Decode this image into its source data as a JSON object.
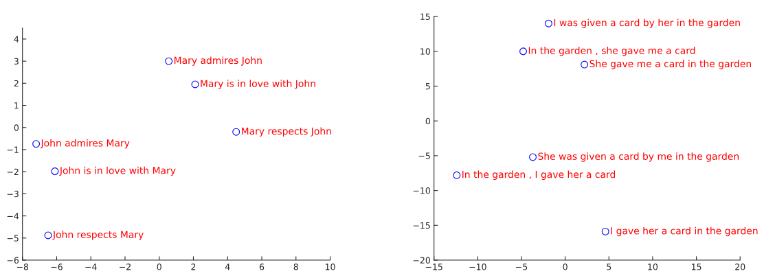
{
  "chart_data": [
    {
      "type": "scatter",
      "xlim": [
        -8,
        10
      ],
      "ylim": [
        -6,
        4.5
      ],
      "xticks": [
        -8,
        -6,
        -4,
        -2,
        0,
        2,
        4,
        6,
        8,
        10
      ],
      "yticks": [
        -6,
        -5,
        -4,
        -3,
        -2,
        -1,
        0,
        1,
        2,
        3,
        4
      ],
      "grid": false,
      "marker": "circle",
      "series": [
        {
          "color": "#0000ff",
          "x": [
            0.56,
            2.1,
            4.5,
            -7.2,
            -6.1,
            -6.5
          ],
          "values": [
            3.0,
            1.95,
            -0.2,
            -0.74,
            -1.98,
            -4.88
          ]
        }
      ],
      "annotations": [
        {
          "text": "Mary admires John",
          "x": 0.56,
          "y": 3.0
        },
        {
          "text": "Mary is in love with John",
          "x": 2.1,
          "y": 1.95
        },
        {
          "text": "Mary respects John",
          "x": 4.5,
          "y": -0.2
        },
        {
          "text": "John admires Mary",
          "x": -7.2,
          "y": -0.74
        },
        {
          "text": "John is in love with Mary",
          "x": -6.1,
          "y": -1.98
        },
        {
          "text": "John respects Mary",
          "x": -6.5,
          "y": -4.88
        }
      ]
    },
    {
      "type": "scatter",
      "xlim": [
        -15,
        20
      ],
      "ylim": [
        -20,
        15
      ],
      "xticks": [
        -15,
        -10,
        -5,
        0,
        5,
        10,
        15,
        20
      ],
      "yticks": [
        -20,
        -15,
        -10,
        -5,
        0,
        5,
        10,
        15
      ],
      "grid": false,
      "marker": "circle",
      "series": [
        {
          "color": "#0000ff",
          "x": [
            -1.9,
            -4.8,
            2.2,
            -3.7,
            -12.4,
            4.6
          ],
          "values": [
            14.0,
            10.0,
            8.1,
            -5.2,
            -7.8,
            -15.9
          ]
        }
      ],
      "annotations": [
        {
          "text": "I was given a card by her in the garden",
          "x": -1.9,
          "y": 14.0
        },
        {
          "text": "In the garden , she gave me a card",
          "x": -4.8,
          "y": 10.0
        },
        {
          "text": "She gave me a card in the garden",
          "x": 2.2,
          "y": 8.1
        },
        {
          "text": "She was given a card by me in the garden",
          "x": -3.7,
          "y": -5.2
        },
        {
          "text": "In the garden , I gave her a card",
          "x": -12.4,
          "y": -7.8
        },
        {
          "text": "I gave her a card in the garden",
          "x": 4.6,
          "y": -15.9
        }
      ]
    }
  ]
}
